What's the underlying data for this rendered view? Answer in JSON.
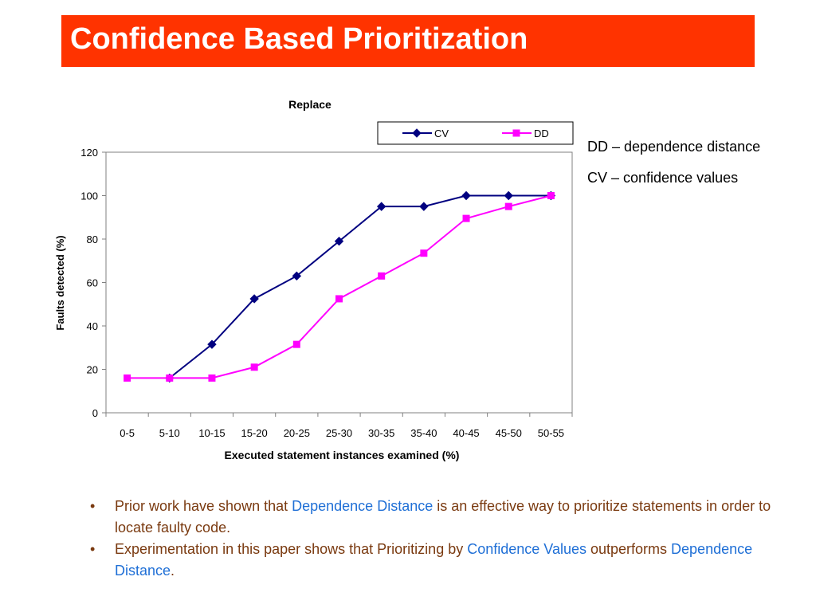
{
  "slide": {
    "title": "Confidence Based Prioritization",
    "accent_color": "#ff3300"
  },
  "notes": [
    "DD – dependence distance",
    "CV – confidence values"
  ],
  "bullets": [
    {
      "parts": [
        {
          "text": "Prior work have shown that ",
          "highlight": false
        },
        {
          "text": "Dependence Distance",
          "highlight": true
        },
        {
          "text": " is an effective way to prioritize statements in order to locate faulty code.",
          "highlight": false
        }
      ]
    },
    {
      "parts": [
        {
          "text": "Experimentation in this paper shows that Prioritizing by ",
          "highlight": false
        },
        {
          "text": "Confidence Values",
          "highlight": true
        },
        {
          "text": " outperforms ",
          "highlight": false
        },
        {
          "text": "Dependence Distance",
          "highlight": true
        },
        {
          "text": ".",
          "highlight": false
        }
      ]
    }
  ],
  "bullet_colors": {
    "text": "#7a3a10",
    "highlight": "#1f6fd6"
  },
  "chart_data": {
    "type": "line",
    "title": "Replace",
    "xlabel": "Executed statement instances examined (%)",
    "ylabel": "Faults detected (%)",
    "categories": [
      "0-5",
      "5-10",
      "10-15",
      "15-20",
      "20-25",
      "25-30",
      "30-35",
      "35-40",
      "40-45",
      "45-50",
      "50-55"
    ],
    "ylim": [
      0,
      120
    ],
    "yticks": [
      0,
      20,
      40,
      60,
      80,
      100,
      120
    ],
    "grid": true,
    "legend_position": "top-right",
    "series": [
      {
        "name": "CV",
        "color": "#000080",
        "marker": "diamond",
        "values": [
          null,
          16,
          31.5,
          52.5,
          63,
          79,
          95,
          95,
          100,
          100,
          100
        ]
      },
      {
        "name": "DD",
        "color": "#ff00ff",
        "marker": "square",
        "values": [
          16,
          16,
          16,
          21,
          31.5,
          52.5,
          63,
          73.5,
          89.5,
          95,
          100
        ]
      }
    ]
  }
}
